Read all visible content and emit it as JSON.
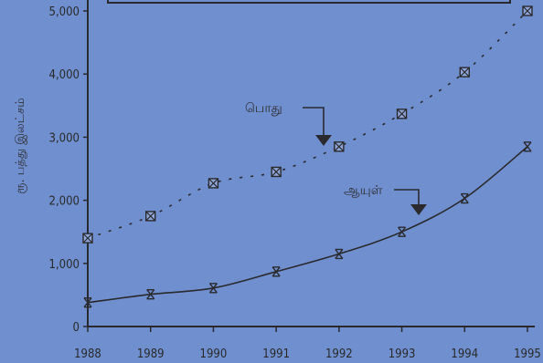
{
  "chart_data": {
    "type": "line",
    "title": "",
    "xlabel": "",
    "ylabel": "ரூ. பத்து இலட்சம்",
    "x": [
      1988,
      1989,
      1990,
      1991,
      1992,
      1993,
      1994,
      1995
    ],
    "ylim": [
      0,
      5000
    ],
    "yticks": [
      0,
      1000,
      2000,
      3000,
      4000,
      5000
    ],
    "ytick_labels": [
      "0",
      "1,000",
      "2,000",
      "3,000",
      "4,000",
      "5,000"
    ],
    "xtick_labels": [
      "1988",
      "1989",
      "1990",
      "1991",
      "1992",
      "1993",
      "1994",
      "1995"
    ],
    "grid": false,
    "legend": "none",
    "series": [
      {
        "name": "பொது",
        "values": [
          1400,
          1750,
          2270,
          2450,
          2850,
          3370,
          4030,
          5000
        ],
        "line_style": "dotted",
        "marker": "boxed-x"
      },
      {
        "name": "ஆயுள்",
        "values": [
          380,
          510,
          610,
          870,
          1150,
          1500,
          2030,
          2850
        ],
        "line_style": "solid",
        "marker": "hourglass"
      }
    ]
  },
  "colors": {
    "background": "#6f8fcf",
    "ink": "#2a2a2e"
  }
}
